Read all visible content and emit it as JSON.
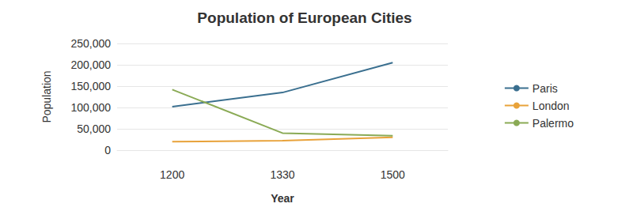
{
  "chart_data": {
    "type": "line",
    "title": "Population of European Cities",
    "x_label": "Year",
    "y_label": "Population",
    "categories": [
      "1200",
      "1330",
      "1500"
    ],
    "series": [
      {
        "name": "Paris",
        "color": "#3a6f8f",
        "values": [
          102000,
          135000,
          205000
        ]
      },
      {
        "name": "London",
        "color": "#e8a23a",
        "values": [
          20000,
          22000,
          30000
        ]
      },
      {
        "name": "Palermo",
        "color": "#8aaa55",
        "values": [
          142000,
          40000,
          34000
        ]
      }
    ],
    "ylim": [
      0,
      250000
    ],
    "yticks": [
      0,
      {
        "value": 50000,
        "label": "50,000"
      },
      {
        "value": 100000,
        "label": "100,000"
      },
      {
        "value": 150000,
        "label": "150,000"
      },
      {
        "value": 200000,
        "label": "200,000"
      },
      {
        "value": 250000,
        "label": "250,000"
      }
    ],
    "grid": true,
    "legend": "right"
  }
}
